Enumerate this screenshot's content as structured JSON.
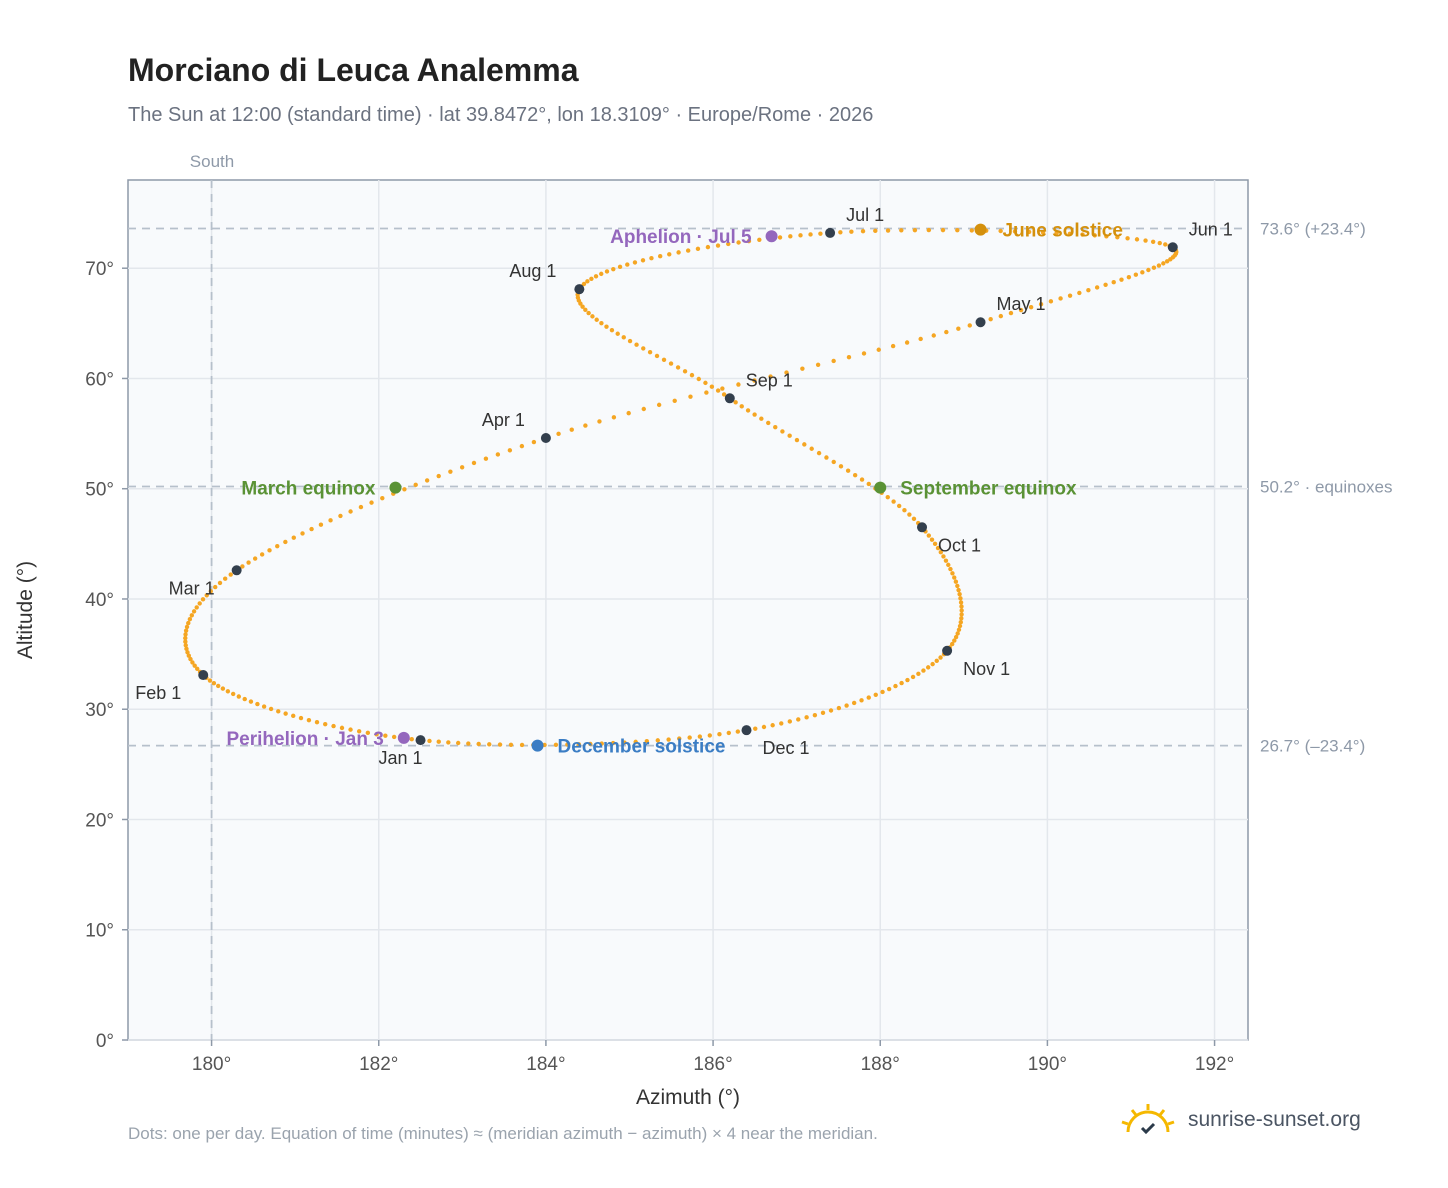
{
  "chart_data": {
    "type": "scatter",
    "title": "Morciano di Leuca Analemma",
    "subtitle": "The Sun at 12:00 (standard time) · lat 39.8472°, lon 18.3109° · Europe/Rome · 2026",
    "xlabel": "Azimuth (°)",
    "ylabel": "Altitude (°)",
    "xlim": [
      179.0,
      192.4
    ],
    "ylim": [
      0,
      78
    ],
    "x_ticks": [
      180,
      182,
      184,
      186,
      188,
      190,
      192
    ],
    "x_tick_labels": [
      "180°",
      "182°",
      "184°",
      "186°",
      "188°",
      "190°",
      "192°"
    ],
    "y_ticks": [
      0,
      10,
      20,
      30,
      40,
      50,
      60,
      70
    ],
    "y_tick_labels": [
      "0°",
      "10°",
      "20°",
      "30°",
      "40°",
      "50°",
      "60°",
      "70°"
    ],
    "grid": true,
    "meridian": {
      "azimuth": 180,
      "label": "South"
    },
    "reference_lines": [
      {
        "altitude": 73.6,
        "label": "73.6° (+23.4°)"
      },
      {
        "altitude": 50.2,
        "label": "50.2° · equinoxes"
      },
      {
        "altitude": 26.7,
        "label": "26.7° (–23.4°)"
      }
    ],
    "path_color": "#f5a623",
    "month_markers": [
      {
        "label": "Jan 1",
        "azimuth": 182.5,
        "altitude": 27.2
      },
      {
        "label": "Feb 1",
        "azimuth": 179.9,
        "altitude": 33.1
      },
      {
        "label": "Mar 1",
        "azimuth": 180.3,
        "altitude": 42.6
      },
      {
        "label": "Apr 1",
        "azimuth": 184.0,
        "altitude": 54.6
      },
      {
        "label": "May 1",
        "azimuth": 189.2,
        "altitude": 65.1
      },
      {
        "label": "Jun 1",
        "azimuth": 191.5,
        "altitude": 71.9
      },
      {
        "label": "Jul 1",
        "azimuth": 187.4,
        "altitude": 73.2
      },
      {
        "label": "Aug 1",
        "azimuth": 184.4,
        "altitude": 68.1
      },
      {
        "label": "Sep 1",
        "azimuth": 186.2,
        "altitude": 58.2
      },
      {
        "label": "Oct 1",
        "azimuth": 188.5,
        "altitude": 46.5
      },
      {
        "label": "Nov 1",
        "azimuth": 188.8,
        "altitude": 35.3
      },
      {
        "label": "Dec 1",
        "azimuth": 186.4,
        "altitude": 28.1
      }
    ],
    "events": [
      {
        "label": "June solstice",
        "azimuth": 189.2,
        "altitude": 73.5,
        "color": "#d4900c"
      },
      {
        "label": "Aphelion · Jul 5",
        "azimuth": 186.7,
        "altitude": 72.9,
        "color": "#9467bd"
      },
      {
        "label": "March equinox",
        "azimuth": 182.2,
        "altitude": 50.1,
        "color": "#5a9235"
      },
      {
        "label": "September equinox",
        "azimuth": 188.0,
        "altitude": 50.1,
        "color": "#5a9235"
      },
      {
        "label": "Perihelion · Jan 3",
        "azimuth": 182.3,
        "altitude": 27.4,
        "color": "#9467bd"
      },
      {
        "label": "December solstice",
        "azimuth": 183.9,
        "altitude": 26.7,
        "color": "#3b7dc4"
      }
    ]
  },
  "footnote": "Dots: one per day. Equation of time (minutes) ≈ (meridian azimuth − azimuth) × 4 near the meridian.",
  "brand": {
    "text": "sunrise-sunset.org",
    "icon": "sun-logo-icon"
  }
}
